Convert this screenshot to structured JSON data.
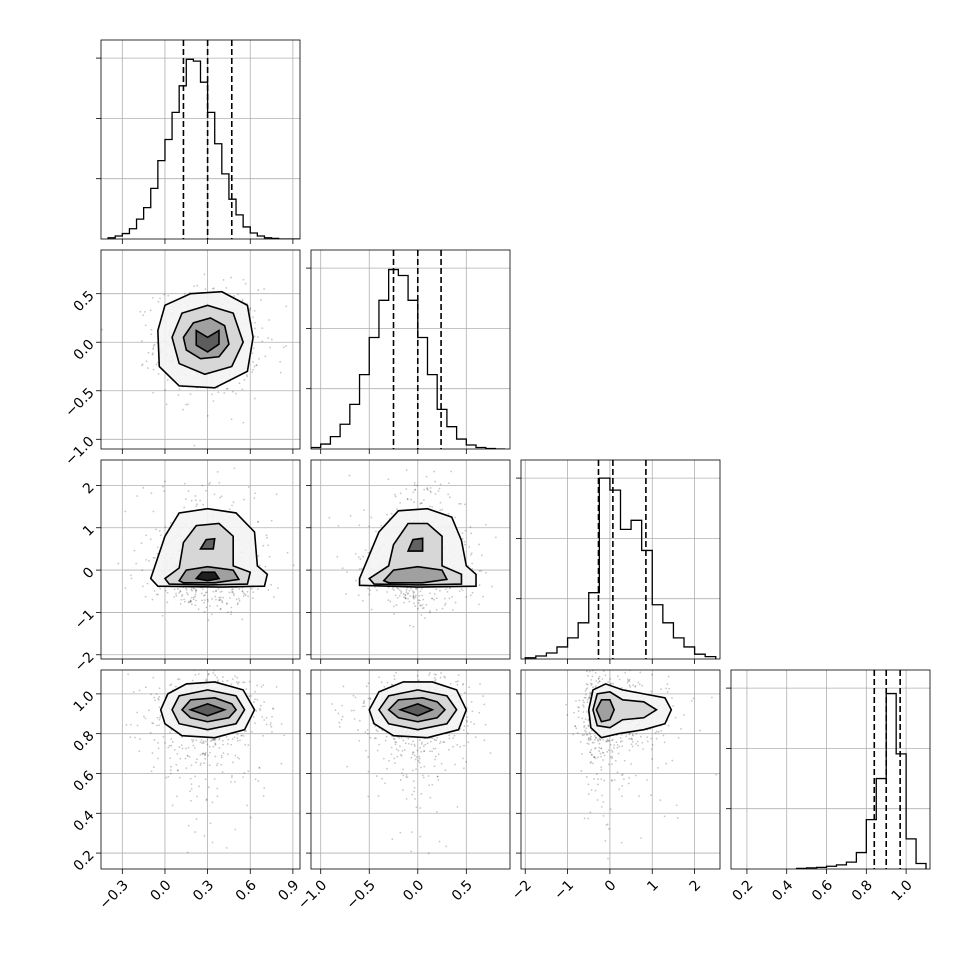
{
  "chart_data": {
    "type": "corner",
    "parameters": [
      {
        "range": [
          -0.45,
          0.95
        ],
        "ticks": [
          -0.3,
          0.0,
          0.3,
          0.6,
          0.9
        ],
        "tick_labels": [
          "−0.3",
          "0.0",
          "0.3",
          "0.6",
          "0.9"
        ],
        "quantiles": [
          0.13,
          0.3,
          0.47
        ],
        "hist": {
          "bin_edges": [
            -0.4,
            -0.35,
            -0.3,
            -0.25,
            -0.2,
            -0.15,
            -0.1,
            -0.05,
            0.0,
            0.05,
            0.1,
            0.15,
            0.2,
            0.25,
            0.3,
            0.35,
            0.4,
            0.45,
            0.5,
            0.55,
            0.6,
            0.65,
            0.7,
            0.75,
            0.8,
            0.85,
            0.9,
            0.95
          ],
          "counts": [
            2,
            5,
            9,
            17,
            33,
            52,
            84,
            130,
            165,
            210,
            254,
            298,
            295,
            260,
            210,
            158,
            108,
            66,
            40,
            20,
            10,
            5,
            2,
            1,
            0,
            0,
            0
          ],
          "ymax": 300
        }
      },
      {
        "range": [
          -1.1,
          0.95
        ],
        "ticks": [
          -1.0,
          -0.5,
          0.0,
          0.5
        ],
        "tick_labels": [
          "−1.0",
          "−0.5",
          "0.0",
          "0.5"
        ],
        "quantiles": [
          -0.25,
          0.0,
          0.24
        ],
        "hist": {
          "bin_edges": [
            -1.1,
            -1.0,
            -0.9,
            -0.8,
            -0.7,
            -0.6,
            -0.5,
            -0.4,
            -0.3,
            -0.2,
            -0.1,
            0.0,
            0.1,
            0.2,
            0.3,
            0.4,
            0.5,
            0.6,
            0.7,
            0.8,
            0.9
          ],
          "counts": [
            3,
            10,
            25,
            50,
            90,
            150,
            225,
            300,
            362,
            350,
            300,
            225,
            150,
            80,
            45,
            20,
            8,
            3,
            1,
            0
          ],
          "ymax": 365
        }
      },
      {
        "range": [
          -2.1,
          2.6
        ],
        "ticks": [
          -2,
          -1,
          0,
          1,
          2
        ],
        "tick_labels": [
          "−2",
          "−1",
          "0",
          "1",
          "2"
        ],
        "quantiles": [
          -0.27,
          0.07,
          0.85
        ],
        "hist": {
          "bin_edges": [
            -2.0,
            -1.75,
            -1.5,
            -1.25,
            -1.0,
            -0.75,
            -0.5,
            -0.25,
            0.0,
            0.25,
            0.5,
            0.75,
            1.0,
            1.25,
            1.5,
            1.75,
            2.0,
            2.25,
            2.5
          ],
          "counts": [
            2,
            5,
            10,
            20,
            35,
            60,
            110,
            300,
            280,
            215,
            230,
            180,
            90,
            60,
            35,
            20,
            8,
            4
          ],
          "ymax": 300
        }
      },
      {
        "range": [
          0.12,
          1.12
        ],
        "ticks": [
          0.2,
          0.4,
          0.6,
          0.8,
          1.0
        ],
        "tick_labels": [
          "0.2",
          "0.4",
          "0.6",
          "0.8",
          "1.0"
        ],
        "quantiles": [
          0.84,
          0.9,
          0.97
        ],
        "hist": {
          "bin_edges": [
            0.45,
            0.5,
            0.55,
            0.6,
            0.65,
            0.7,
            0.75,
            0.8,
            0.85,
            0.9,
            0.95,
            1.0,
            1.05,
            1.1
          ],
          "counts": [
            2,
            4,
            6,
            10,
            15,
            25,
            60,
            180,
            330,
            640,
            420,
            110,
            20
          ],
          "ymax": 660
        }
      }
    ],
    "pairs": [
      {
        "row": 1,
        "col": 0,
        "center": [
          0.3,
          0.0
        ],
        "spread": [
          0.16,
          0.24
        ],
        "contours": [
          [
            [
              -0.05,
              0.12
            ],
            [
              0.0,
              0.38
            ],
            [
              0.18,
              0.5
            ],
            [
              0.4,
              0.52
            ],
            [
              0.58,
              0.38
            ],
            [
              0.62,
              0.05
            ],
            [
              0.58,
              -0.3
            ],
            [
              0.35,
              -0.47
            ],
            [
              0.1,
              -0.45
            ],
            [
              -0.04,
              -0.25
            ]
          ],
          [
            [
              0.05,
              0.05
            ],
            [
              0.12,
              0.3
            ],
            [
              0.3,
              0.38
            ],
            [
              0.48,
              0.3
            ],
            [
              0.55,
              0.0
            ],
            [
              0.47,
              -0.25
            ],
            [
              0.28,
              -0.33
            ],
            [
              0.1,
              -0.22
            ]
          ],
          [
            [
              0.13,
              0.05
            ],
            [
              0.2,
              0.2
            ],
            [
              0.32,
              0.25
            ],
            [
              0.42,
              0.17
            ],
            [
              0.45,
              -0.02
            ],
            [
              0.38,
              -0.15
            ],
            [
              0.25,
              -0.17
            ],
            [
              0.15,
              -0.08
            ]
          ],
          [
            [
              0.22,
              0.12
            ],
            [
              0.3,
              0.05
            ],
            [
              0.38,
              0.12
            ],
            [
              0.38,
              -0.02
            ],
            [
              0.3,
              -0.1
            ],
            [
              0.22,
              -0.03
            ]
          ]
        ]
      },
      {
        "row": 2,
        "col": 0,
        "center": [
          0.3,
          0.0
        ],
        "spread": [
          0.17,
          0.75
        ],
        "contours": [
          [
            [
              -0.1,
              -0.2
            ],
            [
              0.0,
              0.8
            ],
            [
              0.1,
              1.35
            ],
            [
              0.3,
              1.45
            ],
            [
              0.5,
              1.35
            ],
            [
              0.63,
              0.9
            ],
            [
              0.65,
              0.1
            ],
            [
              0.72,
              -0.1
            ],
            [
              0.7,
              -0.38
            ],
            [
              0.4,
              -0.4
            ],
            [
              -0.05,
              -0.38
            ]
          ],
          [
            [
              0.0,
              -0.2
            ],
            [
              0.1,
              0.05
            ],
            [
              0.13,
              0.65
            ],
            [
              0.22,
              1.05
            ],
            [
              0.38,
              1.1
            ],
            [
              0.48,
              0.8
            ],
            [
              0.48,
              0.1
            ],
            [
              0.6,
              -0.05
            ],
            [
              0.58,
              -0.33
            ],
            [
              0.3,
              -0.35
            ],
            [
              0.03,
              -0.33
            ]
          ],
          [
            [
              0.1,
              -0.25
            ],
            [
              0.15,
              0.0
            ],
            [
              0.3,
              0.08
            ],
            [
              0.48,
              0.0
            ],
            [
              0.52,
              -0.22
            ],
            [
              0.35,
              -0.3
            ],
            [
              0.13,
              -0.3
            ]
          ],
          [
            [
              0.25,
              0.5
            ],
            [
              0.29,
              0.72
            ],
            [
              0.35,
              0.74
            ],
            [
              0.34,
              0.5
            ]
          ],
          [
            [
              0.22,
              -0.2
            ],
            [
              0.26,
              -0.05
            ],
            [
              0.35,
              -0.05
            ],
            [
              0.38,
              -0.2
            ],
            [
              0.3,
              -0.25
            ]
          ]
        ]
      },
      {
        "row": 2,
        "col": 1,
        "center": [
          0.0,
          0.0
        ],
        "spread": [
          0.24,
          0.75
        ],
        "contours": [
          [
            [
              -0.6,
              -0.2
            ],
            [
              -0.4,
              0.9
            ],
            [
              -0.2,
              1.4
            ],
            [
              0.1,
              1.45
            ],
            [
              0.35,
              1.25
            ],
            [
              0.45,
              0.7
            ],
            [
              0.5,
              0.1
            ],
            [
              0.6,
              -0.1
            ],
            [
              0.6,
              -0.38
            ],
            [
              0.0,
              -0.4
            ],
            [
              -0.6,
              -0.36
            ]
          ],
          [
            [
              -0.5,
              -0.2
            ],
            [
              -0.3,
              0.1
            ],
            [
              -0.25,
              0.6
            ],
            [
              -0.1,
              1.1
            ],
            [
              0.1,
              1.1
            ],
            [
              0.25,
              0.8
            ],
            [
              0.25,
              0.1
            ],
            [
              0.45,
              -0.1
            ],
            [
              0.45,
              -0.33
            ],
            [
              0.0,
              -0.35
            ],
            [
              -0.45,
              -0.33
            ]
          ],
          [
            [
              -0.35,
              -0.25
            ],
            [
              -0.25,
              0.0
            ],
            [
              0.0,
              0.08
            ],
            [
              0.25,
              0.0
            ],
            [
              0.3,
              -0.22
            ],
            [
              0.05,
              -0.3
            ],
            [
              -0.3,
              -0.3
            ]
          ],
          [
            [
              -0.1,
              0.45
            ],
            [
              -0.05,
              0.72
            ],
            [
              0.05,
              0.75
            ],
            [
              0.05,
              0.45
            ]
          ]
        ]
      },
      {
        "row": 3,
        "col": 0,
        "center": [
          0.3,
          0.92
        ],
        "spread": [
          0.17,
          0.08
        ],
        "contours": [
          [
            [
              -0.03,
              0.92
            ],
            [
              0.02,
              1.0
            ],
            [
              0.15,
              1.05
            ],
            [
              0.35,
              1.06
            ],
            [
              0.55,
              1.02
            ],
            [
              0.63,
              0.92
            ],
            [
              0.56,
              0.82
            ],
            [
              0.35,
              0.78
            ],
            [
              0.12,
              0.79
            ],
            [
              0.0,
              0.85
            ]
          ],
          [
            [
              0.05,
              0.92
            ],
            [
              0.1,
              0.99
            ],
            [
              0.3,
              1.02
            ],
            [
              0.5,
              0.99
            ],
            [
              0.56,
              0.92
            ],
            [
              0.5,
              0.85
            ],
            [
              0.3,
              0.82
            ],
            [
              0.1,
              0.85
            ]
          ],
          [
            [
              0.12,
              0.92
            ],
            [
              0.18,
              0.97
            ],
            [
              0.35,
              0.98
            ],
            [
              0.47,
              0.95
            ],
            [
              0.5,
              0.92
            ],
            [
              0.45,
              0.88
            ],
            [
              0.3,
              0.86
            ],
            [
              0.18,
              0.88
            ]
          ],
          [
            [
              0.18,
              0.92
            ],
            [
              0.3,
              0.95
            ],
            [
              0.42,
              0.92
            ],
            [
              0.3,
              0.89
            ]
          ]
        ]
      },
      {
        "row": 3,
        "col": 1,
        "center": [
          0.0,
          0.92
        ],
        "spread": [
          0.24,
          0.08
        ],
        "contours": [
          [
            [
              -0.5,
              0.92
            ],
            [
              -0.4,
              1.01
            ],
            [
              -0.15,
              1.06
            ],
            [
              0.15,
              1.06
            ],
            [
              0.4,
              1.02
            ],
            [
              0.5,
              0.92
            ],
            [
              0.42,
              0.82
            ],
            [
              0.1,
              0.78
            ],
            [
              -0.25,
              0.79
            ],
            [
              -0.45,
              0.85
            ]
          ],
          [
            [
              -0.4,
              0.92
            ],
            [
              -0.3,
              0.99
            ],
            [
              0.0,
              1.02
            ],
            [
              0.3,
              0.99
            ],
            [
              0.4,
              0.92
            ],
            [
              0.3,
              0.85
            ],
            [
              0.0,
              0.82
            ],
            [
              -0.3,
              0.85
            ]
          ],
          [
            [
              -0.3,
              0.92
            ],
            [
              -0.2,
              0.97
            ],
            [
              0.05,
              0.98
            ],
            [
              0.2,
              0.96
            ],
            [
              0.28,
              0.92
            ],
            [
              0.2,
              0.88
            ],
            [
              0.0,
              0.86
            ],
            [
              -0.2,
              0.88
            ]
          ],
          [
            [
              -0.18,
              0.92
            ],
            [
              0.0,
              0.95
            ],
            [
              0.15,
              0.92
            ],
            [
              0.0,
              0.89
            ]
          ]
        ]
      },
      {
        "row": 3,
        "col": 2,
        "center": [
          0.1,
          0.92
        ],
        "spread": [
          0.6,
          0.08
        ],
        "contours": [
          [
            [
              -0.5,
              0.92
            ],
            [
              -0.4,
              1.02
            ],
            [
              -0.1,
              1.05
            ],
            [
              0.3,
              1.02
            ],
            [
              0.8,
              1.0
            ],
            [
              1.3,
              0.98
            ],
            [
              1.45,
              0.92
            ],
            [
              1.3,
              0.85
            ],
            [
              0.8,
              0.82
            ],
            [
              0.2,
              0.8
            ],
            [
              -0.2,
              0.78
            ],
            [
              -0.45,
              0.83
            ]
          ],
          [
            [
              -0.4,
              0.92
            ],
            [
              -0.3,
              1.0
            ],
            [
              0.0,
              1.01
            ],
            [
              0.3,
              0.97
            ],
            [
              0.8,
              0.96
            ],
            [
              1.1,
              0.92
            ],
            [
              0.8,
              0.88
            ],
            [
              0.3,
              0.87
            ],
            [
              0.0,
              0.83
            ],
            [
              -0.3,
              0.84
            ]
          ],
          [
            [
              -0.32,
              0.92
            ],
            [
              -0.2,
              0.97
            ],
            [
              0.0,
              0.97
            ],
            [
              0.1,
              0.92
            ],
            [
              0.0,
              0.87
            ],
            [
              -0.2,
              0.86
            ]
          ]
        ]
      }
    ],
    "grid": true
  }
}
